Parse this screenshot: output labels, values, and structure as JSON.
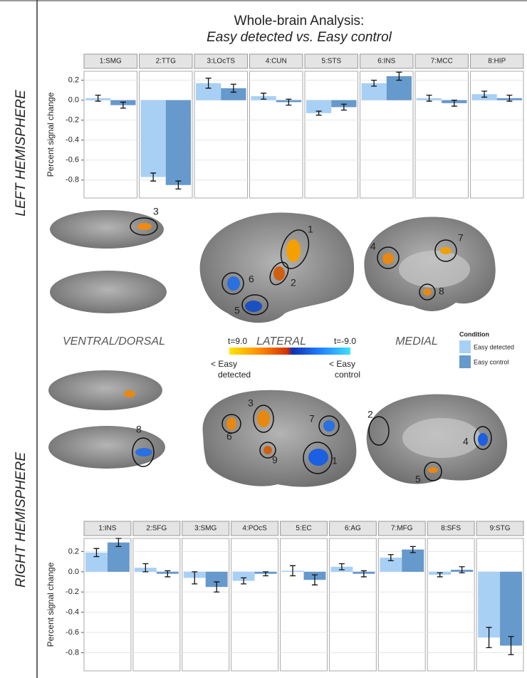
{
  "title": "Whole-brain Analysis:",
  "subtitle": "Easy detected vs. Easy control",
  "chart_data": [
    {
      "type": "bar",
      "side_label": "LEFT HEMISPHERE",
      "y_label": "Percent signal change",
      "categories": [
        "1:SMG",
        "2:TTG",
        "3:LOcTS",
        "4:CUN",
        "5:STS",
        "6:INS",
        "7:MCC",
        "8:HIP"
      ],
      "series": [
        {
          "name": "Easy detected",
          "color": "#a8d0f5",
          "values": [
            0.02,
            -0.77,
            0.17,
            0.04,
            -0.13,
            0.17,
            0.02,
            0.06
          ],
          "errors": [
            0.03,
            0.04,
            0.05,
            0.03,
            0.02,
            0.03,
            0.03,
            0.03
          ]
        },
        {
          "name": "Easy control",
          "color": "#6699cc",
          "values": [
            -0.05,
            -0.85,
            0.12,
            -0.02,
            -0.07,
            0.24,
            -0.03,
            0.02
          ],
          "errors": [
            0.03,
            0.04,
            0.04,
            0.03,
            0.03,
            0.04,
            0.03,
            0.03
          ]
        }
      ],
      "ylim": [
        -0.98,
        0.29
      ],
      "yticks": [
        -0.8,
        -0.6,
        -0.4,
        -0.2,
        {
          "value": 0,
          "label": "0.0"
        },
        0.2
      ],
      "grid": true
    },
    {
      "type": "bar",
      "side_label": "RIGHT HEMISPHERE",
      "y_label": "Percent signal change",
      "categories": [
        "1:INS",
        "2:SFG",
        "3:SMG",
        "4:POcS",
        "5:EC",
        "6:AG",
        "7:MFG",
        "8:SFS",
        "9:STG"
      ],
      "series": [
        {
          "name": "Easy detected",
          "color": "#a8d0f5",
          "values": [
            0.19,
            0.04,
            -0.06,
            -0.09,
            0.01,
            0.05,
            0.14,
            -0.03,
            -0.65
          ],
          "errors": [
            0.04,
            0.04,
            0.06,
            0.03,
            0.05,
            0.03,
            0.03,
            0.02,
            0.1
          ]
        },
        {
          "name": "Easy control",
          "color": "#6699cc",
          "values": [
            0.29,
            -0.02,
            -0.15,
            -0.02,
            -0.08,
            -0.02,
            0.22,
            0.02,
            -0.73
          ],
          "errors": [
            0.04,
            0.03,
            0.05,
            0.02,
            0.05,
            0.03,
            0.03,
            0.03,
            0.09
          ]
        }
      ],
      "ylim": [
        -0.98,
        0.33
      ],
      "yticks": [
        -0.8,
        -0.6,
        -0.4,
        -0.2,
        {
          "value": 0,
          "label": "0.0"
        },
        0.2
      ],
      "grid": true
    }
  ],
  "legend": {
    "title": "Condition"
  },
  "brain_views": {
    "views": [
      "VENTRAL/DORSAL",
      "LATERAL",
      "MEDIAL"
    ],
    "left_labels": [
      "3",
      "1",
      "6",
      "2",
      "5",
      "4",
      "7",
      "8"
    ],
    "right_labels": [
      "8",
      "3",
      "6",
      "7",
      "9",
      "1",
      "2",
      "4",
      "5"
    ]
  },
  "colorbar": {
    "left_t": "t=9.0",
    "right_t": "t=-9.0",
    "left_label": [
      "< Easy",
      "detected"
    ],
    "right_label": [
      "< Easy",
      "control"
    ]
  }
}
